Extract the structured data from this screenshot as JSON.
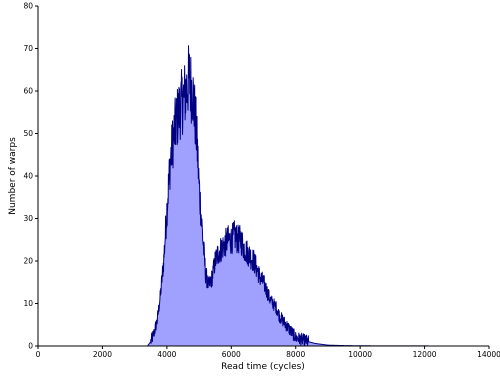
{
  "chart_data": {
    "type": "area",
    "title": "",
    "xlabel": "Read time (cycles)",
    "ylabel": "Number of warps",
    "xlim": [
      0,
      14000
    ],
    "ylim": [
      0,
      80
    ],
    "xticks": [
      0,
      2000,
      4000,
      6000,
      8000,
      10000,
      12000,
      14000
    ],
    "yticks": [
      0,
      10,
      20,
      30,
      40,
      50,
      60,
      70,
      80
    ],
    "grid": false,
    "colors": {
      "fill": "#a0a0ff",
      "line": "#000080"
    },
    "series": [
      {
        "x": [
          3400,
          3500,
          3600,
          3700,
          3800,
          3900,
          4000,
          4100,
          4200,
          4300,
          4400,
          4500,
          4600,
          4650,
          4700,
          4750,
          4800,
          4850,
          4900,
          4950,
          5000,
          5100,
          5200,
          5300,
          5400,
          5500,
          5600,
          5700,
          5800,
          5900,
          6000,
          6100,
          6200,
          6300,
          6400,
          6500,
          6600,
          6700,
          6800,
          6900,
          7000,
          7100,
          7200,
          7300,
          7400,
          7500,
          7600,
          7700,
          7800,
          7900,
          8000,
          8200,
          8400,
          8600,
          8800,
          9000,
          9500,
          10000,
          11000,
          12000,
          12500
        ],
        "values": [
          0,
          1,
          3,
          6,
          12,
          20,
          32,
          43,
          49,
          53,
          56,
          58,
          60,
          62,
          63,
          61,
          60,
          56,
          52,
          46,
          38,
          27,
          17,
          14,
          16,
          20,
          22,
          23,
          24,
          25,
          25,
          26,
          25,
          25,
          23,
          22,
          21,
          20,
          18,
          16,
          15,
          13,
          11,
          10,
          9,
          7,
          6,
          5,
          4,
          3,
          2,
          1.5,
          1,
          0.6,
          0.4,
          0.2,
          0.1,
          0.05,
          0.03,
          0.02,
          0
        ]
      }
    ]
  }
}
